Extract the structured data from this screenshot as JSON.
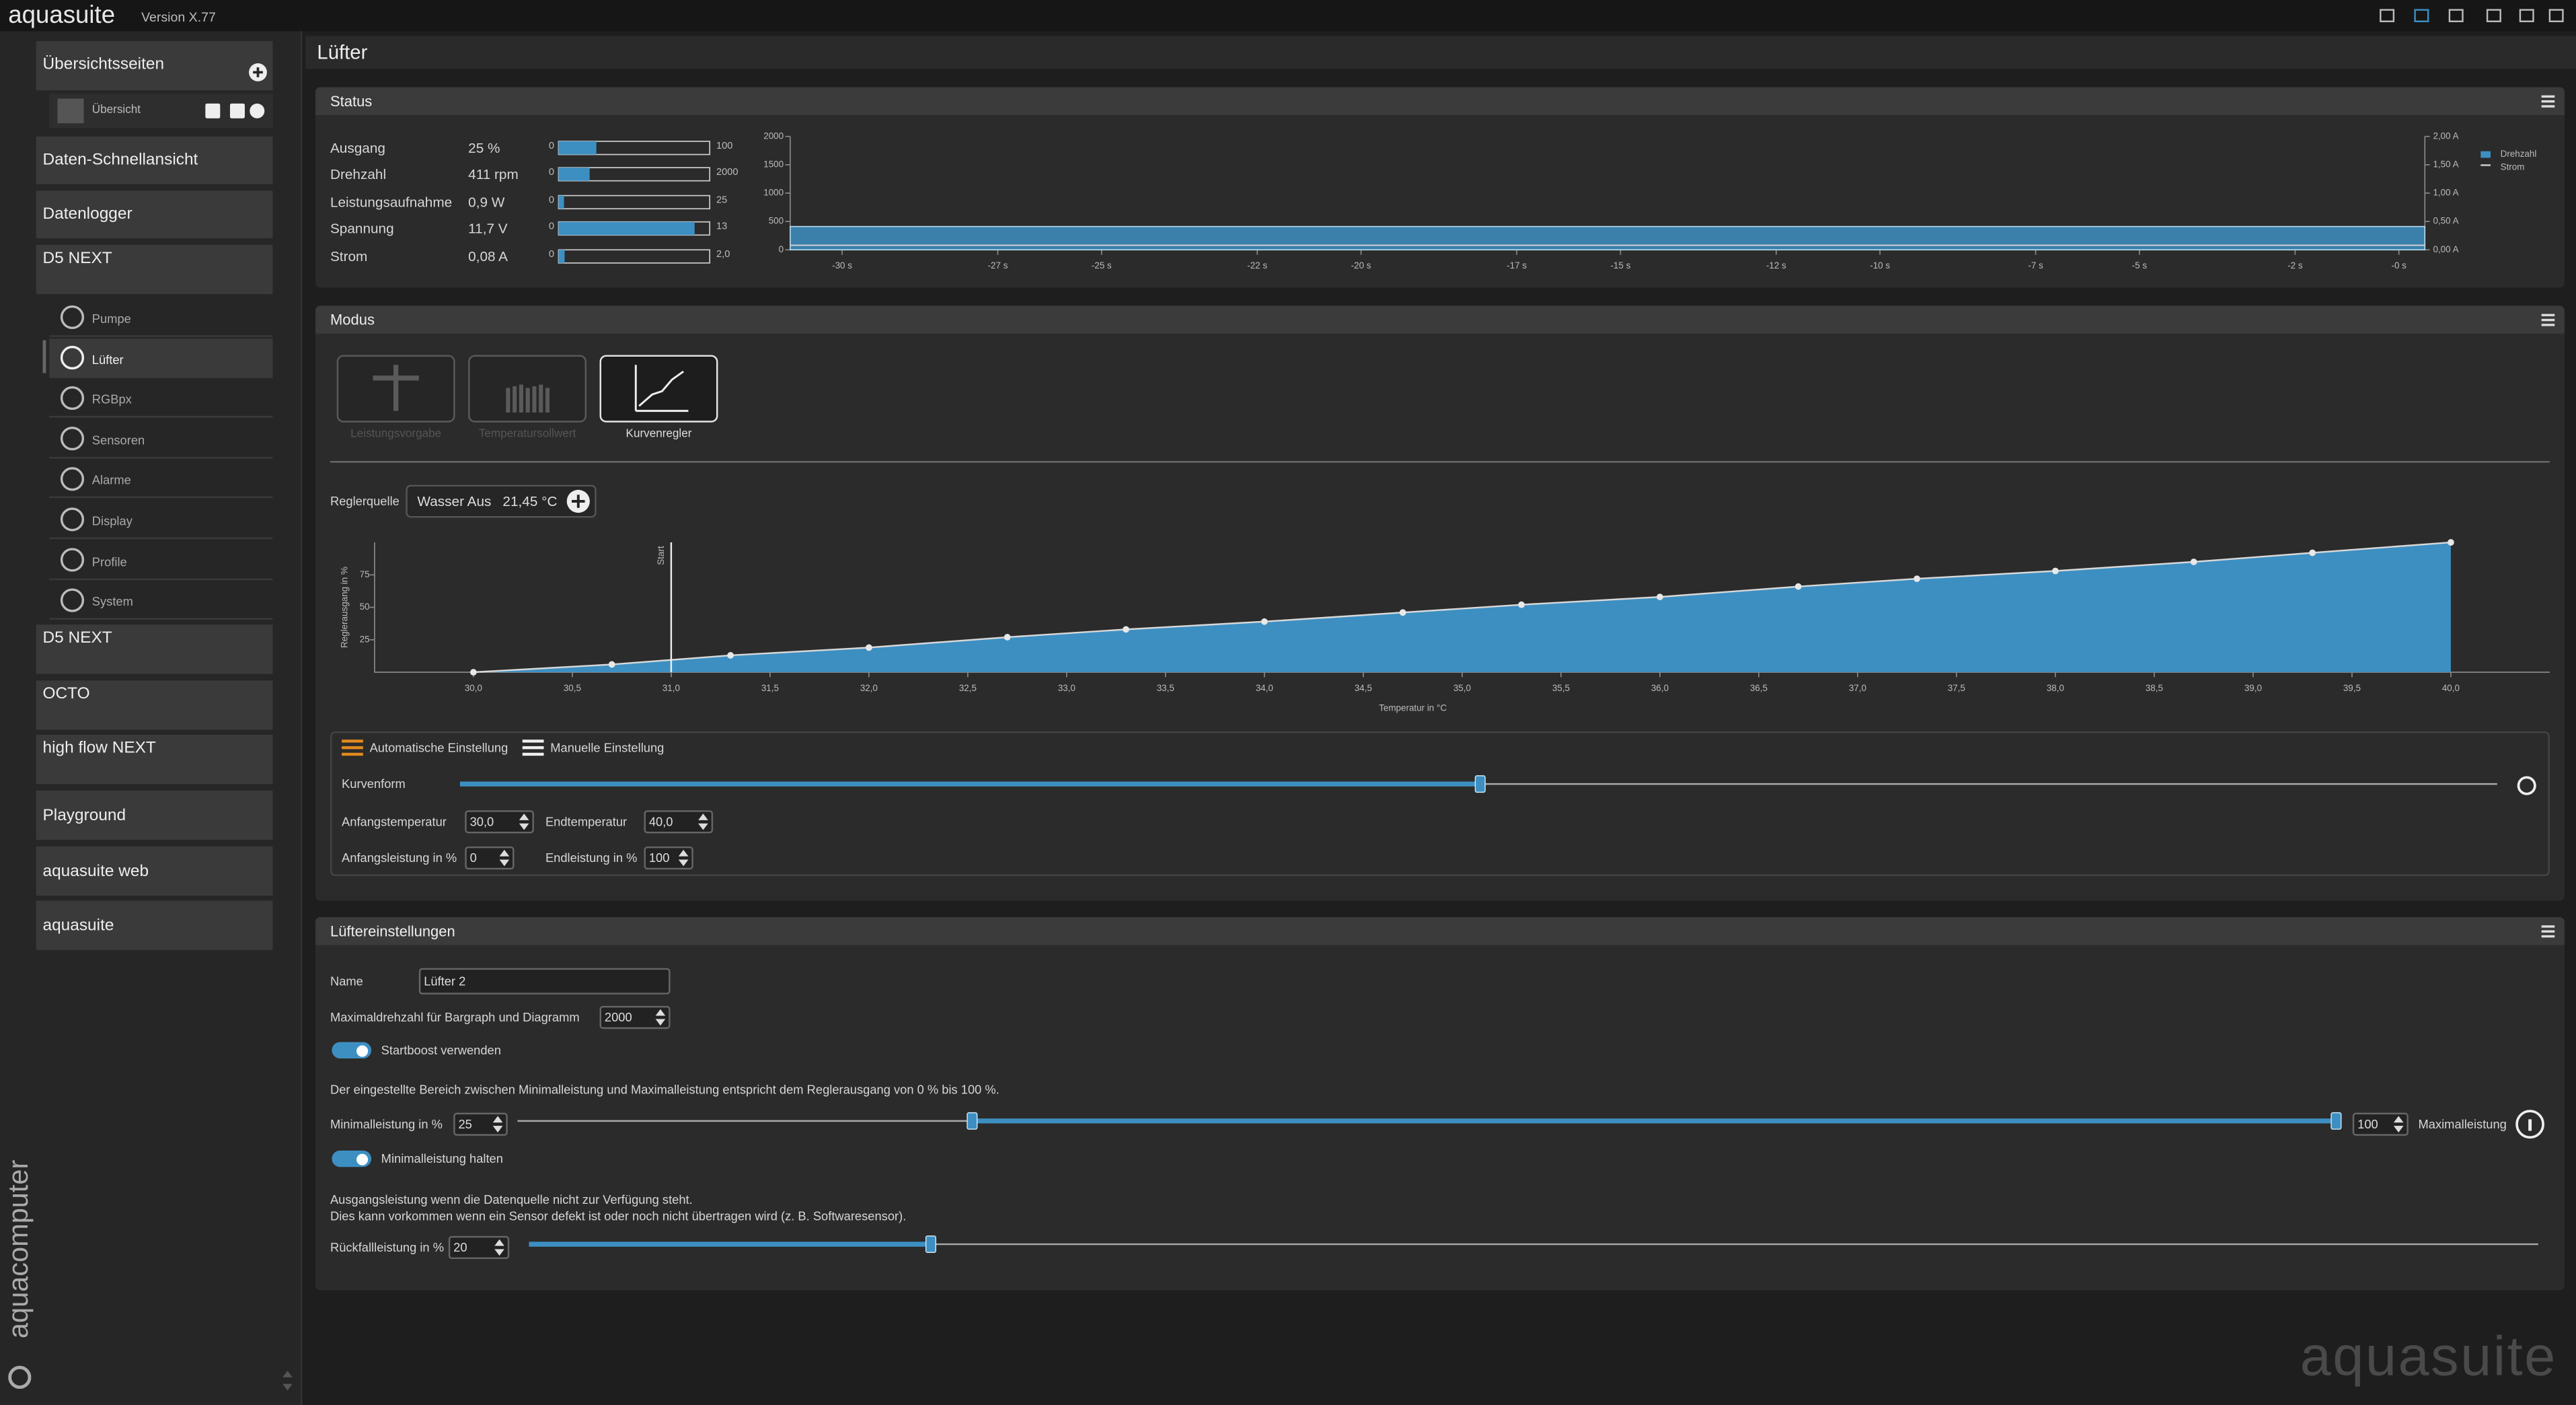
{
  "app": {
    "name": "aquasuite",
    "version": "Version X.77",
    "watermark": "aquasuite",
    "brand": "aquacomputer"
  },
  "sidebar": {
    "overview_header": "Übersichtsseiten",
    "overview_item": "Übersicht",
    "items": [
      "Daten-Schnellansicht",
      "Datenlogger",
      "D5 NEXT"
    ],
    "device_menu": [
      {
        "label": "Pumpe",
        "active": false
      },
      {
        "label": "Lüfter",
        "active": true
      },
      {
        "label": "RGBpx",
        "active": false
      },
      {
        "label": "Sensoren",
        "active": false
      },
      {
        "label": "Alarme",
        "active": false
      },
      {
        "label": "Display",
        "active": false
      },
      {
        "label": "Profile",
        "active": false
      },
      {
        "label": "System",
        "active": false
      }
    ],
    "devices": [
      "D5 NEXT",
      "OCTO",
      "high flow NEXT",
      "Playground",
      "aquasuite web",
      "aquasuite"
    ]
  },
  "page_title": "Lüfter",
  "status": {
    "title": "Status",
    "rows": [
      {
        "label": "Ausgang",
        "value": 25,
        "value_label": "25 %",
        "min": 0,
        "max": 100
      },
      {
        "label": "Drehzahl",
        "value": 411,
        "value_label": "411 rpm",
        "min": 0,
        "max": 2000
      },
      {
        "label": "Leistungsaufnahme",
        "value": 0.9,
        "value_label": "0,9 W",
        "min": 0,
        "max": 25
      },
      {
        "label": "Spannung",
        "value": 11.7,
        "value_label": "11,7 V",
        "min": 0,
        "max": 13
      },
      {
        "label": "Strom",
        "value": 0.08,
        "value_label": "0,08 A",
        "min": 0,
        "max": {
          "value": 2,
          "label": "2,0"
        }
      }
    ],
    "chart_data": {
      "type": "area",
      "x": [
        -31,
        0.5
      ],
      "xlim": [
        -31,
        0.5
      ],
      "xticks": [
        {
          "value": -30,
          "label": "-30 s"
        },
        {
          "value": -27,
          "label": "-27 s"
        },
        {
          "value": -25,
          "label": "-25 s"
        },
        {
          "value": -22,
          "label": "-22 s"
        },
        {
          "value": -20,
          "label": "-20 s"
        },
        {
          "value": -17,
          "label": "-17 s"
        },
        {
          "value": -15,
          "label": "-15 s"
        },
        {
          "value": -12,
          "label": "-12 s"
        },
        {
          "value": -10,
          "label": "-10 s"
        },
        {
          "value": -7,
          "label": "-7 s"
        },
        {
          "value": -5,
          "label": "-5 s"
        },
        {
          "value": -2,
          "label": "-2 s"
        },
        {
          "value": 0,
          "label": "-0 s"
        }
      ],
      "ylim": [
        0,
        2000
      ],
      "yticks": [
        0,
        500,
        1000,
        1500,
        2000
      ],
      "y2lim": [
        0,
        2
      ],
      "y2ticks": [
        {
          "value": 0,
          "label": "0,00 A"
        },
        {
          "value": 0.5,
          "label": "0,50 A"
        },
        {
          "value": 1,
          "label": "1,00 A"
        },
        {
          "value": 1.5,
          "label": "1,50 A"
        },
        {
          "value": 2,
          "label": "2,00 A"
        }
      ],
      "series": [
        {
          "name": "Drehzahl",
          "color": "#3d8fc2",
          "values": [
            411,
            411
          ]
        },
        {
          "name": "Strom",
          "color": "#cfcfcf",
          "axis": "y2",
          "values": [
            0.08,
            0.08
          ]
        }
      ]
    }
  },
  "modus": {
    "title": "Modus",
    "modes": [
      {
        "label": "Leistungsvorgabe",
        "active": false
      },
      {
        "label": "Temperatursollwert",
        "active": false
      },
      {
        "label": "Kurvenregler",
        "active": true
      }
    ],
    "source_label": "Reglerquelle",
    "source": "Wasser Aus",
    "source_value": "21,45 °C",
    "chart_data": {
      "type": "area",
      "color": "#3d8fc2",
      "xlabel": "Temperatur in °C",
      "ylabel": "Reglerausgang in %",
      "x": [
        30.0,
        30.7,
        31.3,
        32.0,
        32.7,
        33.3,
        34.0,
        34.7,
        35.3,
        36.0,
        36.7,
        37.3,
        38.0,
        38.7,
        39.3,
        40.0
      ],
      "values": [
        0,
        6,
        13,
        19,
        27,
        33,
        39,
        46,
        52,
        58,
        66,
        72,
        78,
        85,
        92,
        100
      ],
      "xlim": [
        29.5,
        40.5
      ],
      "ylim": [
        0,
        100
      ],
      "yticks": [
        25,
        50,
        75
      ],
      "xticks": [
        {
          "value": 30,
          "label": "30,0"
        },
        {
          "value": 30.5,
          "label": "30,5"
        },
        {
          "value": 31,
          "label": "31,0"
        },
        {
          "value": 31.5,
          "label": "31,5"
        },
        {
          "value": 32,
          "label": "32,0"
        },
        {
          "value": 32.5,
          "label": "32,5"
        },
        {
          "value": 33,
          "label": "33,0"
        },
        {
          "value": 33.5,
          "label": "33,5"
        },
        {
          "value": 34,
          "label": "34,0"
        },
        {
          "value": 34.5,
          "label": "34,5"
        },
        {
          "value": 35,
          "label": "35,0"
        },
        {
          "value": 35.5,
          "label": "35,5"
        },
        {
          "value": 36,
          "label": "36,0"
        },
        {
          "value": 36.5,
          "label": "36,5"
        },
        {
          "value": 37,
          "label": "37,0"
        },
        {
          "value": 37.5,
          "label": "37,5"
        },
        {
          "value": 38,
          "label": "38,0"
        },
        {
          "value": 38.5,
          "label": "38,5"
        },
        {
          "value": 39,
          "label": "39,0"
        },
        {
          "value": 39.5,
          "label": "39,5"
        },
        {
          "value": 40,
          "label": "40,0"
        }
      ],
      "marker": {
        "x": 31,
        "label": "Start"
      }
    },
    "settings": {
      "auto": "Automatische Einstellung",
      "manual": "Manuelle Einstellung",
      "curve_shape": "Kurvenform",
      "start_temp_label": "Anfangstemperatur",
      "start_temp": "30,0",
      "end_temp_label": "Endtemperatur",
      "end_temp": "40,0",
      "start_power_label": "Anfangsleistung in %",
      "start_power": 0,
      "end_power_label": "Endleistung in %",
      "end_power": 100
    }
  },
  "fan": {
    "title": "Lüftereinstellungen",
    "name_label": "Name",
    "name": "Lüfter 2",
    "max_speed_label": "Maximaldrehzahl für Bargraph und Diagramm",
    "max_speed": 2000,
    "startboost": {
      "label": "Startboost verwenden",
      "on": true
    },
    "range_note": "Der eingestellte Bereich zwischen Minimalleistung und Maximalleistung entspricht dem Reglerausgang von 0 % bis 100 %.",
    "min_power_label": "Minimalleistung in %",
    "min_power": 25,
    "max_power": 100,
    "max_power_label": "Maximalleistung",
    "hold_min": {
      "label": "Minimalleistung halten",
      "on": true
    },
    "fallback_note": [
      "Ausgangsleistung wenn die Datenquelle nicht zur Verfügung steht.",
      "Dies kann vorkommen wenn ein Sensor defekt ist oder noch nicht übertragen wird (z. B. Softwaresensor)."
    ],
    "fallback_label": "Rückfallleistung in %",
    "fallback": 20
  }
}
